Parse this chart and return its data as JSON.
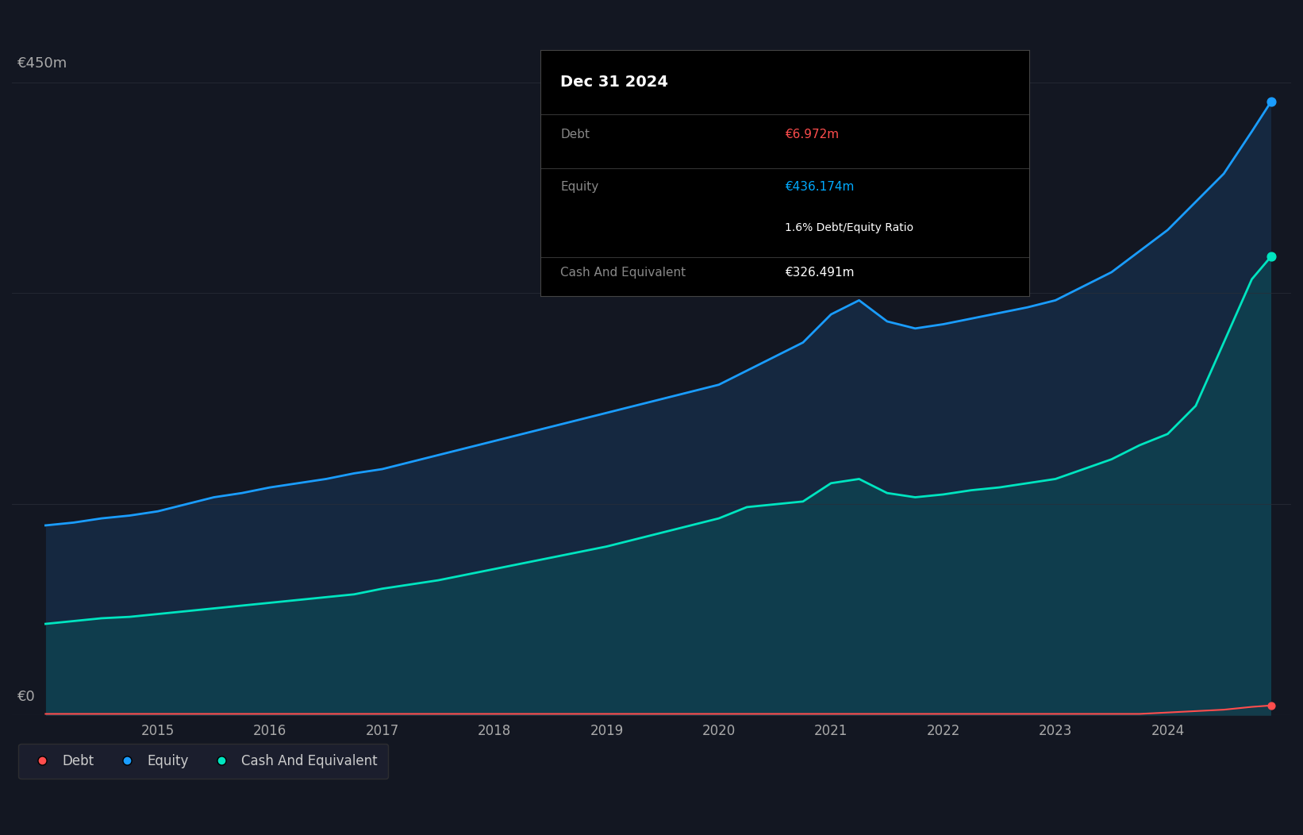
{
  "bg_color": "#131722",
  "plot_bg_color": "#131722",
  "grid_color": "#2a2e39",
  "title_box": {
    "date": "Dec 31 2024",
    "debt_label": "Debt",
    "debt_value": "€6.972m",
    "equity_label": "Equity",
    "equity_value": "€436.174m",
    "ratio_text": "1.6% Debt/Equity Ratio",
    "cash_label": "Cash And Equivalent",
    "cash_value": "€326.491m",
    "bg_color": "#000000",
    "border_color": "#444444",
    "date_color": "#ffffff",
    "label_color": "#888888",
    "debt_value_color": "#ff4d4d",
    "equity_value_color": "#00aaff",
    "ratio_color": "#ffffff",
    "cash_value_color": "#ffffff"
  },
  "ylabel_text": "€450m",
  "y0_text": "€0",
  "ylim": [
    0,
    500
  ],
  "equity_color": "#1a9dff",
  "equity_fill_color": "#1a4a7a",
  "cash_color": "#00e5c0",
  "cash_fill_color": "#005f50",
  "debt_color": "#ff4d4d",
  "debt_fill_color": "#3a0a0a",
  "years": [
    2014.0,
    2014.25,
    2014.5,
    2014.75,
    2015.0,
    2015.25,
    2015.5,
    2015.75,
    2016.0,
    2016.25,
    2016.5,
    2016.75,
    2017.0,
    2017.25,
    2017.5,
    2017.75,
    2018.0,
    2018.25,
    2018.5,
    2018.75,
    2019.0,
    2019.25,
    2019.5,
    2019.75,
    2020.0,
    2020.25,
    2020.5,
    2020.75,
    2021.0,
    2021.25,
    2021.5,
    2021.75,
    2022.0,
    2022.25,
    2022.5,
    2022.75,
    2023.0,
    2023.25,
    2023.5,
    2023.75,
    2024.0,
    2024.25,
    2024.5,
    2024.75,
    2024.92
  ],
  "equity": [
    135,
    137,
    140,
    142,
    145,
    150,
    155,
    158,
    162,
    165,
    168,
    172,
    175,
    180,
    185,
    190,
    195,
    200,
    205,
    210,
    215,
    220,
    225,
    230,
    235,
    245,
    255,
    265,
    285,
    295,
    280,
    275,
    278,
    282,
    286,
    290,
    295,
    305,
    315,
    330,
    345,
    365,
    385,
    415,
    436
  ],
  "cash": [
    65,
    67,
    69,
    70,
    72,
    74,
    76,
    78,
    80,
    82,
    84,
    86,
    90,
    93,
    96,
    100,
    104,
    108,
    112,
    116,
    120,
    125,
    130,
    135,
    140,
    148,
    150,
    152,
    165,
    168,
    158,
    155,
    157,
    160,
    162,
    165,
    168,
    175,
    182,
    192,
    200,
    220,
    265,
    310,
    326
  ],
  "debt": [
    1,
    1,
    1,
    1,
    1,
    1,
    1,
    1,
    1,
    1,
    1,
    1,
    1,
    1,
    1,
    1,
    1,
    1,
    1,
    1,
    1,
    1,
    1,
    1,
    1,
    1,
    1,
    1,
    1,
    1,
    1,
    1,
    1,
    1,
    1,
    1,
    1,
    1,
    1,
    1,
    2,
    3,
    4,
    6,
    7
  ],
  "legend_items": [
    {
      "label": "Debt",
      "color": "#ff4d4d"
    },
    {
      "label": "Equity",
      "color": "#1a9dff"
    },
    {
      "label": "Cash And Equivalent",
      "color": "#00e5c0"
    }
  ],
  "xtick_years": [
    2015,
    2016,
    2017,
    2018,
    2019,
    2020,
    2021,
    2022,
    2023,
    2024
  ],
  "xmin": 2013.7,
  "xmax": 2025.1
}
